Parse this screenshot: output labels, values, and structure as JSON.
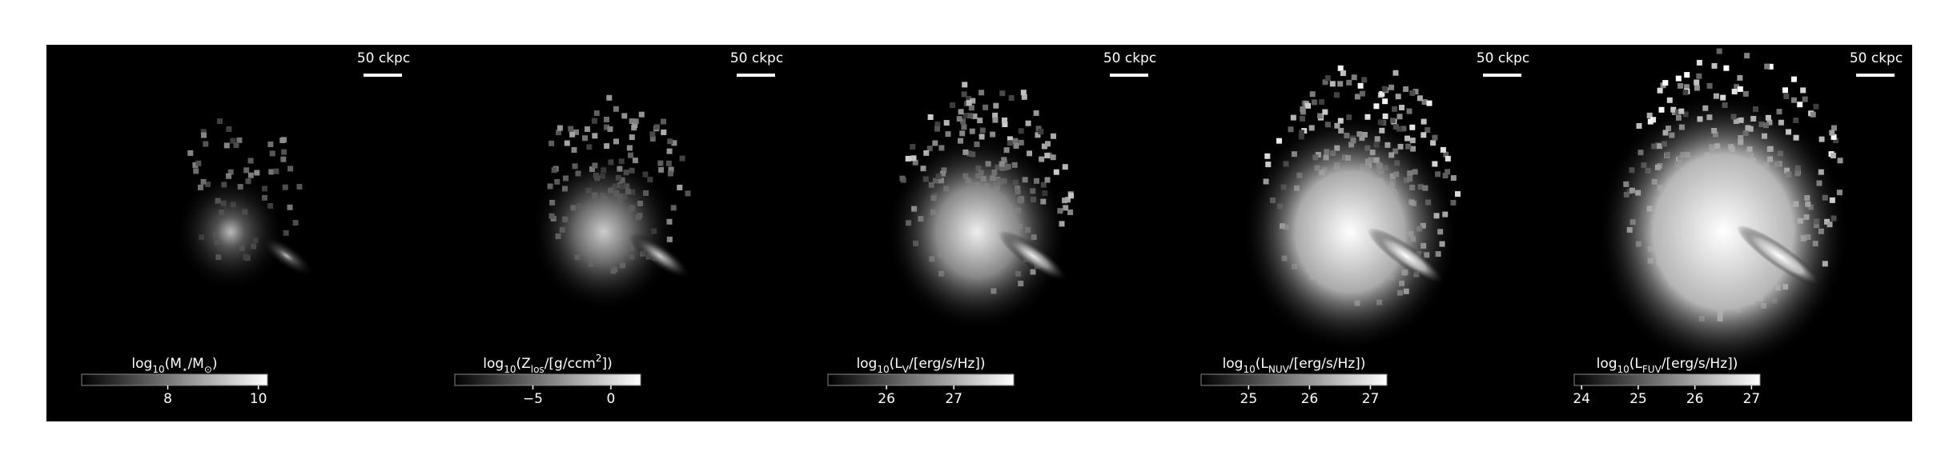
{
  "panels": [
    {
      "scale_bar_label": "50 ckpc",
      "colorbar": {
        "label": [
          {
            "text": "log"
          },
          {
            "text": "10",
            "sub": true
          },
          {
            "text": "(M"
          },
          {
            "text": "⋆",
            "sub": true
          },
          {
            "text": "/M"
          },
          {
            "text": "⊙",
            "sub": true
          },
          {
            "text": ")"
          }
        ],
        "lim": [
          6.1,
          10.2
        ],
        "ticks": [
          8,
          10
        ]
      }
    },
    {
      "scale_bar_label": "50 ckpc",
      "colorbar": {
        "label": [
          {
            "text": "log"
          },
          {
            "text": "10",
            "sub": true
          },
          {
            "text": "(Z"
          },
          {
            "text": "los",
            "sub": true
          },
          {
            "text": "/[g/ccm"
          },
          {
            "text": "2",
            "sup": true
          },
          {
            "text": "])"
          }
        ],
        "lim": [
          -10,
          1.9
        ],
        "ticks": [
          {
            "value": -5,
            "label": "−5"
          },
          0
        ]
      }
    },
    {
      "scale_bar_label": "50 ckpc",
      "colorbar": {
        "label": [
          {
            "text": "log"
          },
          {
            "text": "10",
            "sub": true
          },
          {
            "text": "(L"
          },
          {
            "text": "V",
            "sub": true
          },
          {
            "text": "/[erg/s/Hz])"
          }
        ],
        "lim": [
          25.13,
          27.89
        ],
        "ticks": [
          26,
          27
        ]
      }
    },
    {
      "scale_bar_label": "50 ckpc",
      "colorbar": {
        "label": [
          {
            "text": "log"
          },
          {
            "text": "10",
            "sub": true
          },
          {
            "text": "(L"
          },
          {
            "text": "NUV",
            "sub": true
          },
          {
            "text": "/[erg/s/Hz])"
          }
        ],
        "lim": [
          24.22,
          27.27
        ],
        "ticks": [
          25,
          26,
          27
        ]
      }
    },
    {
      "scale_bar_label": "50 ckpc",
      "colorbar": {
        "label": [
          {
            "text": "log"
          },
          {
            "text": "10",
            "sub": true
          },
          {
            "text": "(L"
          },
          {
            "text": "FUV",
            "sub": true
          },
          {
            "text": "/[erg/s/Hz])"
          }
        ],
        "lim": [
          23.87,
          27.15
        ],
        "ticks": [
          24,
          25,
          26,
          27
        ]
      }
    }
  ]
}
